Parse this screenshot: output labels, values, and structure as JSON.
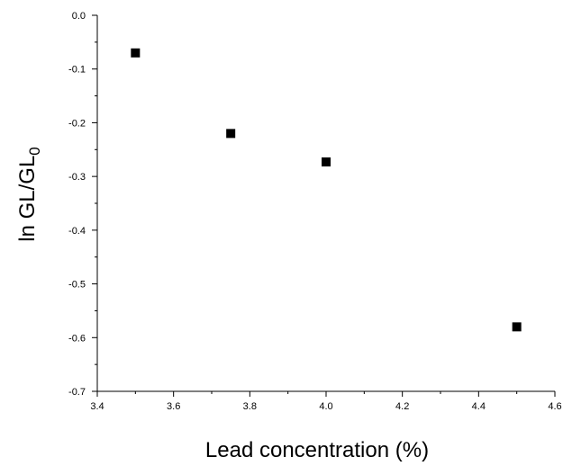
{
  "chart_data": {
    "type": "scatter",
    "title": "",
    "xlabel": "Lead concentration (%)",
    "ylabel": {
      "main": "ln GL/GL",
      "subscript": "0"
    },
    "xlim": [
      3.4,
      4.6
    ],
    "ylim": [
      -0.7,
      0.0
    ],
    "x_ticks": [
      3.4,
      3.6,
      3.8,
      4.0,
      4.2,
      4.4,
      4.6
    ],
    "x_tick_labels": [
      "3.4",
      "3.6",
      "3.8",
      "4.0",
      "4.2",
      "4.4",
      "4.6"
    ],
    "y_ticks": [
      0.0,
      -0.1,
      -0.2,
      -0.3,
      -0.4,
      -0.5,
      -0.6,
      -0.7
    ],
    "y_tick_labels": [
      "0.0",
      "-0.1",
      "-0.2",
      "-0.3",
      "-0.4",
      "-0.5",
      "-0.6",
      "-0.7"
    ],
    "grid": false,
    "legend": "none",
    "marker": "square",
    "marker_color": "#000000",
    "points": [
      {
        "x": 3.5,
        "y": -0.07
      },
      {
        "x": 3.75,
        "y": -0.22
      },
      {
        "x": 4.0,
        "y": -0.273
      },
      {
        "x": 4.5,
        "y": -0.58
      }
    ]
  }
}
